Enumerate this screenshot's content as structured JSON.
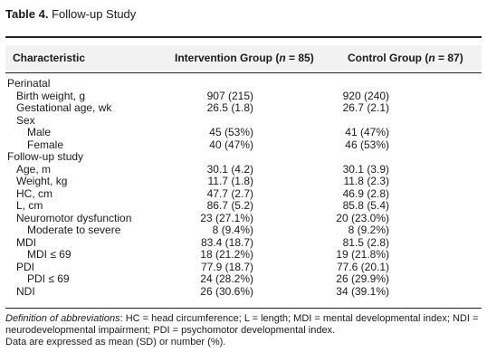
{
  "title": {
    "label": "Table 4.",
    "text": "Follow-up Study"
  },
  "table": {
    "columns": [
      [
        "Characteristic"
      ],
      [
        "Intervention Group (",
        "n",
        " = 85)"
      ],
      [
        "Control Group (",
        "n",
        " = 87)"
      ]
    ],
    "rows": [
      [
        "Perinatal"
      ],
      [
        "Birth weight, g",
        "907 (215)",
        "920 (240)"
      ],
      [
        "Gestational age, wk",
        "26.5 (1.8)",
        "26.7 (2.1)"
      ],
      [
        "Sex"
      ],
      [
        "Male",
        "45 (53%)",
        "41 (47%)"
      ],
      [
        "Female",
        "40 (47%)",
        "46 (53%)"
      ],
      [
        "Follow-up study"
      ],
      [
        "Age, m",
        "30.1 (4.2)",
        "30.1 (3.9)"
      ],
      [
        "Weight, kg",
        "11.7 (1.8)",
        "11.8 (2.3)"
      ],
      [
        "HC, cm",
        "47.7 (2.7)",
        "46.9 (2.8)"
      ],
      [
        "L, cm",
        "86.7 (5.2)",
        "85.8 (5.4)"
      ],
      [
        "Neuromotor dysfunction",
        "23 (27.1%)",
        "20 (23.0%)"
      ],
      [
        "Moderate to severe",
        "8 (9.4%)",
        "8 (9.2%)"
      ],
      [
        "MDI",
        "83.4 (18.7)",
        "81.5 (2.8)"
      ],
      [
        "MDI ≤ 69",
        "18 (21.2%)",
        "19 (21.8%)"
      ],
      [
        "PDI",
        "77.9 (18.7)",
        "77.6 (20.1)"
      ],
      [
        "PDI ≤ 69",
        "24 (28.2%)",
        "26 (29.9%)"
      ],
      [
        "NDI",
        "26 (30.6%)",
        "34 (39.1%)"
      ]
    ]
  },
  "footnotes": [
    [
      "Definition of abbreviations",
      ": HC = head circumference; L = length; MDI = mental developmental index; NDI = neurodevelopmental impairment; PDI = psychomotor developmental index."
    ],
    "Data are expressed as mean (SD) or number (%)."
  ]
}
